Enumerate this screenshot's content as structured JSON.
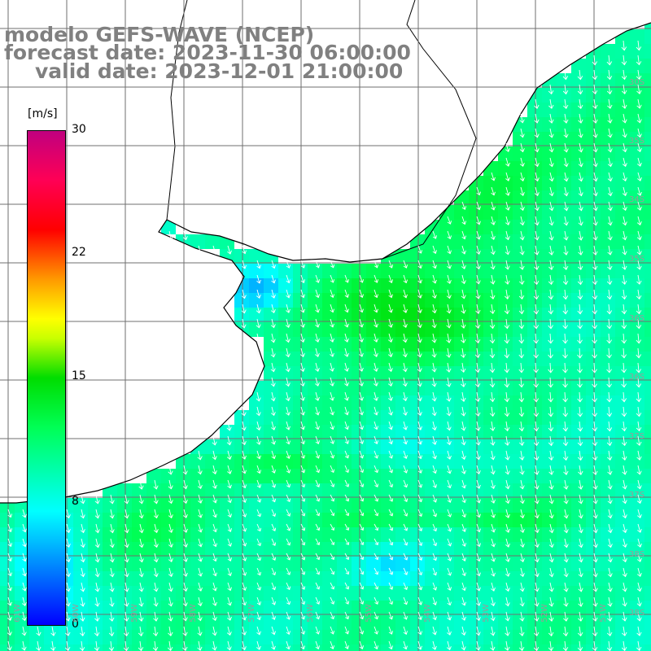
{
  "title": {
    "line1": "modelo GEFS-WAVE (NCEP)",
    "line2": "forecast date: 2023-11-30 06:00:00",
    "line3": "valid date: 2023-12-01 21:00:00"
  },
  "colorbar": {
    "units": "[m/s]",
    "ticks": [
      "30",
      "22",
      "15",
      "8",
      "0"
    ],
    "tick_values": [
      30,
      22,
      15,
      8,
      0
    ],
    "colors": [
      "#0000ff",
      "#00bfff",
      "#00ffff",
      "#00ff55",
      "#00dd00",
      "#c8ff00",
      "#ffff00",
      "#ff9900",
      "#ff0000",
      "#c0007f"
    ]
  },
  "map": {
    "lat_labels": [
      "30S",
      "35S",
      "34S",
      "35S",
      "36S",
      "36S",
      "37S",
      "37S",
      "38S",
      "38S",
      "39S",
      "40S",
      "40S",
      "41S"
    ],
    "lon_labels": [
      "61W",
      "60W",
      "59W",
      "58W",
      "57W",
      "56W",
      "55W",
      "54W",
      "53W",
      "52W",
      "51W"
    ],
    "arrow_color": "#ffffff",
    "grid_color": "#6f6f6f",
    "coast_color": "#000000",
    "land_color": "#ffffff"
  }
}
